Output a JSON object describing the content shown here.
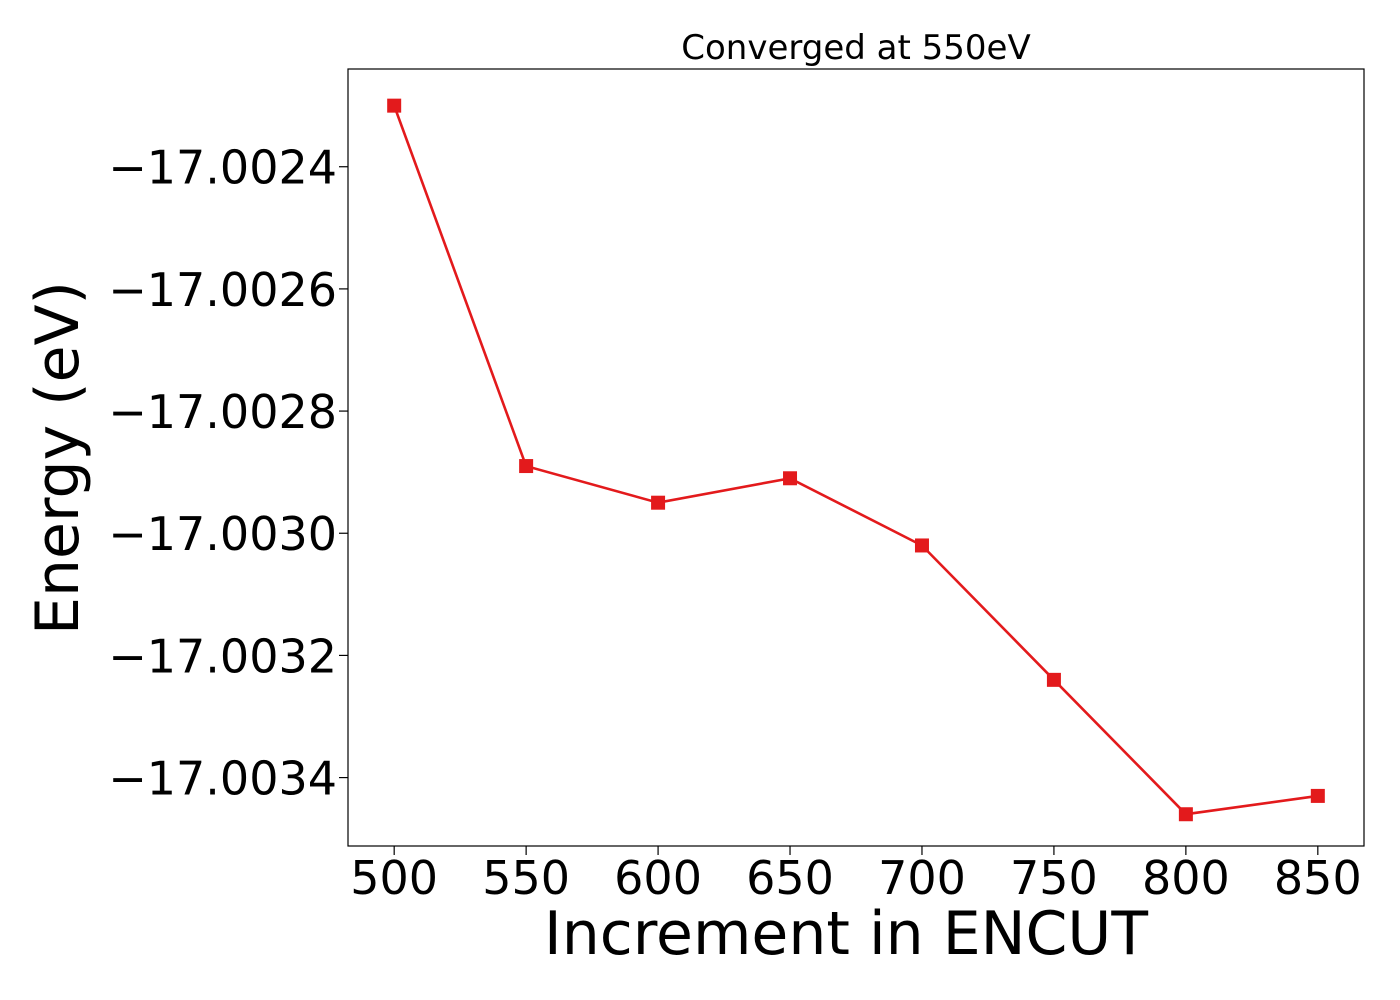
{
  "chart_data": {
    "type": "line",
    "title": "Converged at 550eV",
    "xlabel": "Increment in ENCUT",
    "ylabel": "Energy (eV)",
    "x": [
      500,
      550,
      600,
      650,
      700,
      750,
      800,
      850
    ],
    "series": [
      {
        "values": [
          -17.0023,
          -17.00289,
          -17.00295,
          -17.00291,
          -17.00302,
          -17.00324,
          -17.00346,
          -17.00343
        ],
        "color": "#e31a1c",
        "marker": "square"
      }
    ],
    "xticks": [
      500,
      550,
      600,
      650,
      700,
      750,
      800,
      850
    ],
    "xtick_labels": [
      "500",
      "550",
      "600",
      "650",
      "700",
      "750",
      "800",
      "850"
    ],
    "yticks": [
      -17.0024,
      -17.0026,
      -17.0028,
      -17.003,
      -17.0032,
      -17.0034
    ],
    "ytick_labels": [
      "−17.0024",
      "−17.0026",
      "−17.0028",
      "−17.0030",
      "−17.0032",
      "−17.0034"
    ],
    "xlim": [
      482.5,
      867.5
    ],
    "ylim": [
      -17.003512,
      -17.00224
    ],
    "grid": false,
    "legend": "none"
  }
}
